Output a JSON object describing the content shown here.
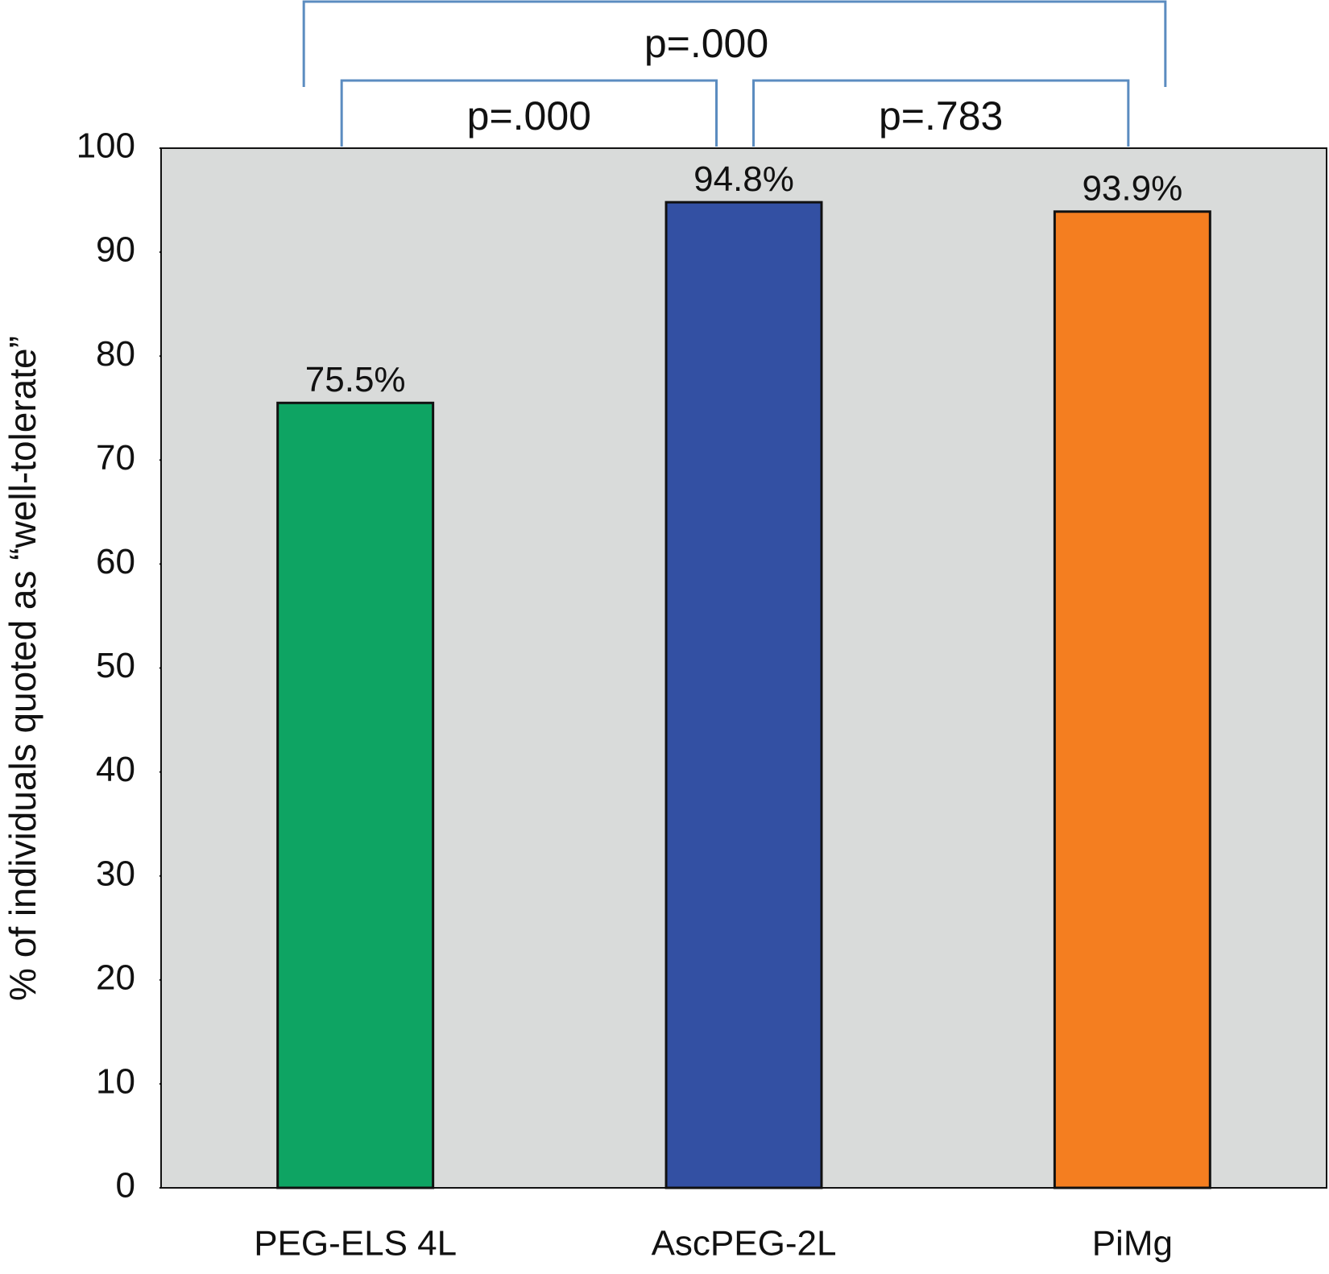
{
  "chart_data": {
    "type": "bar",
    "y_label": "% of individuals quoted as “well-tolerate”",
    "categories": [
      "PEG-ELS 4L",
      "AscPEG-2L",
      "PiMg"
    ],
    "values": [
      75.5,
      94.8,
      93.9
    ],
    "value_labels": [
      "75.5%",
      "94.8%",
      "93.9%"
    ],
    "colors": [
      "#0ea463",
      "#3350a3",
      "#f47e20"
    ],
    "ylim": [
      0,
      100
    ],
    "yticks": [
      0,
      10,
      20,
      30,
      40,
      50,
      60,
      70,
      80,
      90,
      100
    ],
    "comparisons": [
      {
        "label": "p=.000",
        "between": [
          "PEG-ELS 4L",
          "AscPEG-2L"
        ]
      },
      {
        "label": "p=.783",
        "between": [
          "AscPEG-2L",
          "PiMg"
        ]
      },
      {
        "label": "p=.000",
        "between": [
          "PEG-ELS 4L",
          "PiMg"
        ]
      }
    ]
  }
}
